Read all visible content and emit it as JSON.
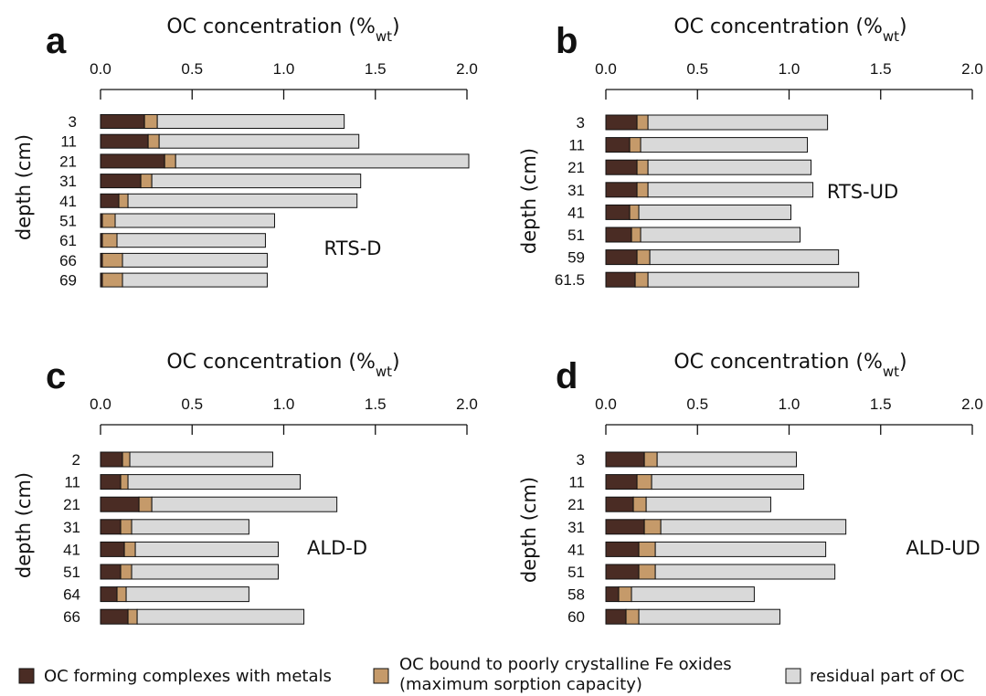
{
  "colors": {
    "metal_complex": "#4a2c24",
    "fe_oxide": "#c59a6a",
    "residual": "#d9d9d9",
    "outline": "#111111"
  },
  "legend": {
    "item1": "OC forming complexes with metals",
    "item2_line1": "OC bound to poorly crystalline Fe oxides",
    "item2_line2": "(maximum sorption capacity)",
    "item3": "residual part of OC"
  },
  "chart_data": [
    {
      "type": "bar",
      "orientation": "horizontal",
      "stacked": true,
      "letter": "a",
      "title_main": "OC concentration (%",
      "title_sub": "wt",
      "title_close": ")",
      "ylabel": "depth (cm)",
      "site": "RTS-D",
      "xlim": [
        0,
        2.0
      ],
      "xticks": [
        "0.0",
        "0.5",
        "1.0",
        "1.5",
        "2.0"
      ],
      "categories": [
        "3",
        "11",
        "21",
        "31",
        "41",
        "51",
        "61",
        "66",
        "69"
      ],
      "series": [
        {
          "name": "OC forming complexes with metals",
          "values": [
            0.24,
            0.26,
            0.35,
            0.22,
            0.1,
            0.01,
            0.01,
            0.01,
            0.01
          ]
        },
        {
          "name": "OC bound to poorly crystalline Fe oxides (maximum sorption capacity)",
          "values": [
            0.07,
            0.06,
            0.06,
            0.06,
            0.05,
            0.07,
            0.08,
            0.11,
            0.11
          ]
        },
        {
          "name": "residual part of OC",
          "values": [
            1.02,
            1.09,
            1.6,
            1.14,
            1.25,
            0.87,
            0.81,
            0.79,
            0.79
          ]
        }
      ]
    },
    {
      "type": "bar",
      "orientation": "horizontal",
      "stacked": true,
      "letter": "b",
      "title_main": "OC concentration (%",
      "title_sub": "wt",
      "title_close": ")",
      "ylabel": "depth (cm)",
      "site": "RTS-UD",
      "xlim": [
        0,
        2.0
      ],
      "xticks": [
        "0.0",
        "0.5",
        "1.0",
        "1.5",
        "2.0"
      ],
      "categories": [
        "3",
        "11",
        "21",
        "31",
        "41",
        "51",
        "59",
        "61.5"
      ],
      "series": [
        {
          "name": "OC forming complexes with metals",
          "values": [
            0.17,
            0.13,
            0.17,
            0.17,
            0.13,
            0.14,
            0.17,
            0.16
          ]
        },
        {
          "name": "OC bound to poorly crystalline Fe oxides (maximum sorption capacity)",
          "values": [
            0.06,
            0.06,
            0.06,
            0.06,
            0.05,
            0.05,
            0.07,
            0.07
          ]
        },
        {
          "name": "residual part of OC",
          "values": [
            0.98,
            0.91,
            0.89,
            0.9,
            0.83,
            0.87,
            1.03,
            1.15
          ]
        }
      ]
    },
    {
      "type": "bar",
      "orientation": "horizontal",
      "stacked": true,
      "letter": "c",
      "title_main": "OC concentration (%",
      "title_sub": "wt",
      "title_close": ")",
      "ylabel": "depth (cm)",
      "site": "ALD-D",
      "xlim": [
        0,
        2.0
      ],
      "xticks": [
        "0.0",
        "0.5",
        "1.0",
        "1.5",
        "2.0"
      ],
      "categories": [
        "2",
        "11",
        "21",
        "31",
        "41",
        "51",
        "64",
        "66"
      ],
      "series": [
        {
          "name": "OC forming complexes with metals",
          "values": [
            0.12,
            0.11,
            0.21,
            0.11,
            0.13,
            0.11,
            0.09,
            0.15
          ]
        },
        {
          "name": "OC bound to poorly crystalline Fe oxides (maximum sorption capacity)",
          "values": [
            0.04,
            0.04,
            0.07,
            0.06,
            0.06,
            0.06,
            0.05,
            0.05
          ]
        },
        {
          "name": "residual part of OC",
          "values": [
            0.78,
            0.94,
            1.01,
            0.64,
            0.78,
            0.8,
            0.67,
            0.91
          ]
        }
      ]
    },
    {
      "type": "bar",
      "orientation": "horizontal",
      "stacked": true,
      "letter": "d",
      "title_main": "OC concentration (%",
      "title_sub": "wt",
      "title_close": ")",
      "ylabel": "depth (cm)",
      "site": "ALD-UD",
      "xlim": [
        0,
        2.0
      ],
      "xticks": [
        "0.0",
        "0.5",
        "1.0",
        "1.5",
        "2.0"
      ],
      "categories": [
        "3",
        "11",
        "21",
        "31",
        "41",
        "51",
        "58",
        "60"
      ],
      "series": [
        {
          "name": "OC forming complexes with metals",
          "values": [
            0.21,
            0.17,
            0.15,
            0.21,
            0.18,
            0.18,
            0.07,
            0.11
          ]
        },
        {
          "name": "OC bound to poorly crystalline Fe oxides (maximum sorption capacity)",
          "values": [
            0.07,
            0.08,
            0.07,
            0.09,
            0.09,
            0.09,
            0.07,
            0.07
          ]
        },
        {
          "name": "residual part of OC",
          "values": [
            0.76,
            0.83,
            0.68,
            1.01,
            0.93,
            0.98,
            0.67,
            0.77
          ]
        }
      ]
    }
  ]
}
